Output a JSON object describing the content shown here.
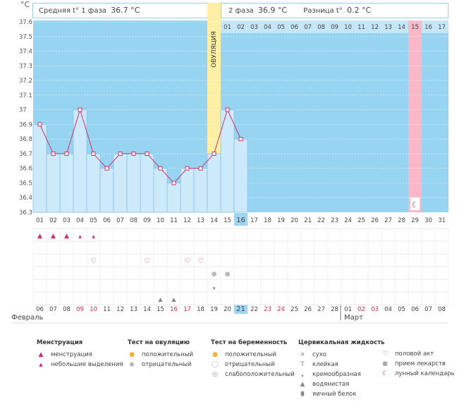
{
  "header": {
    "unit": "°C",
    "phase1_label": "Средняя t° 1 фаза",
    "phase1_value": "36.7 °C",
    "phase2_label": "2 фаза",
    "phase2_value": "36.9 °C",
    "diff_label": "Разница t°",
    "diff_value": "0.2 °C"
  },
  "ovulation_label": "ОВУЛЯЦИЯ",
  "month_labels": {
    "first": "Февраль",
    "second": "Март"
  },
  "colors": {
    "plot_bg": "#96d4f2",
    "bar_fill": "#cdeafa",
    "bar_stroke": "#8cc2e3",
    "line": "#d0306a",
    "ovulation": "#fdf0a6",
    "day15": "#f9b8c8",
    "highlight": "#9ed5f1",
    "red_date": "#d42c4c"
  },
  "chart_data": {
    "type": "line",
    "ylabel": "°C",
    "ylim": [
      36.3,
      37.6
    ],
    "yticks": [
      "36.3",
      "36.4",
      "36.5",
      "36.6",
      "36.7",
      "36.8",
      "36.9",
      "37",
      "37.1",
      "37.2",
      "37.3",
      "37.4",
      "37.5",
      "37.6"
    ],
    "cycle_days": [
      "01",
      "02",
      "03",
      "04",
      "05",
      "06",
      "07",
      "08",
      "09",
      "10",
      "11",
      "12",
      "13",
      "14",
      "15",
      "16",
      "17",
      "18",
      "19",
      "20",
      "21",
      "22",
      "23",
      "24",
      "25",
      "26",
      "27",
      "28",
      "29",
      "30",
      "31"
    ],
    "phase2_days": [
      "01",
      "02",
      "03",
      "04",
      "05",
      "06",
      "07",
      "08",
      "09",
      "10",
      "11",
      "12",
      "13",
      "14",
      "15",
      "16",
      "17"
    ],
    "calendar_dates": [
      "06",
      "07",
      "08",
      "09",
      "10",
      "11",
      "12",
      "13",
      "14",
      "15",
      "16",
      "17",
      "18",
      "19",
      "20",
      "21",
      "22",
      "23",
      "24",
      "25",
      "26",
      "27",
      "28",
      "01",
      "02",
      "03",
      "04",
      "05",
      "06",
      "07",
      "08"
    ],
    "red_calendar_dates_index": [
      3,
      4,
      10,
      11,
      17,
      18,
      24,
      25
    ],
    "current_cycle_day_index": 15,
    "current_date_index": 15,
    "ovulation_day_index": 13,
    "series": [
      {
        "values": [
          36.9,
          36.7,
          36.7,
          37.0,
          36.7,
          36.6,
          36.7,
          36.7,
          36.7,
          36.6,
          36.5,
          36.6,
          36.6,
          36.7,
          37.0,
          36.8
        ]
      }
    ],
    "grid": true
  },
  "event_rows": {
    "menstruation_heavy": [
      0,
      1,
      2
    ],
    "menstruation_light": [
      3,
      4
    ],
    "intercourse": [
      4,
      8,
      11,
      12
    ],
    "medication": [
      13,
      14
    ],
    "discharge_creamy": [
      13
    ],
    "discharge_watery": [
      9,
      10
    ],
    "lunar_day_index": 28
  },
  "legend": {
    "menstruation": {
      "title": "Менструация",
      "items": [
        "менструация",
        "небольшие выделения"
      ]
    },
    "ovulation_test": {
      "title": "Тест на овуляцию",
      "items": [
        "положительный",
        "отрицательный"
      ]
    },
    "pregnancy_test": {
      "title": "Тест на беременность",
      "items": [
        "положительный",
        "отрицательный",
        "слабоположительный"
      ]
    },
    "cervical": {
      "title": "Цервикальная жидкость",
      "items": [
        "сухо",
        "клейкая",
        "кремообразная",
        "водянистая",
        "яичный белок"
      ]
    },
    "other": {
      "items": [
        "половой акт",
        "прием лекарств",
        "лунный календарь"
      ]
    }
  }
}
